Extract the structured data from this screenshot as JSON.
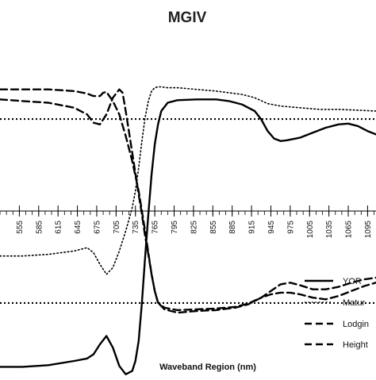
{
  "chart_data": {
    "type": "line",
    "title": "MGIV",
    "xlabel": "Waveband Region (nm)",
    "ylabel": "",
    "xlim": [
      525,
      1108
    ],
    "ylim": [
      -1,
      1
    ],
    "x_ticks": [
      555,
      585,
      615,
      645,
      675,
      705,
      735,
      765,
      795,
      825,
      855,
      885,
      915,
      945,
      975,
      1005,
      1035,
      1065,
      1095
    ],
    "x_tick_labels": [
      "555",
      "585",
      "615",
      "645",
      "675",
      "705",
      "735",
      "765",
      "795",
      "825",
      "855",
      "885",
      "915",
      "945",
      "975",
      "1005",
      "1035",
      "1065",
      "1095"
    ],
    "reference_lines": [
      0.552,
      -0.552
    ],
    "grid": false,
    "legend_position": "bottom-right",
    "series": [
      {
        "name": "YOR",
        "style": "solid",
        "color": "#000000",
        "x": [
          525,
          560,
          600,
          640,
          660,
          670,
          680,
          690,
          700,
          710,
          720,
          730,
          735,
          740,
          745,
          750,
          755,
          760,
          765,
          770,
          775,
          785,
          800,
          830,
          860,
          880,
          900,
          920,
          930,
          940,
          950,
          960,
          970,
          990,
          1010,
          1030,
          1050,
          1065,
          1080,
          1095,
          1108
        ],
        "y": [
          -0.935,
          -0.935,
          -0.925,
          -0.9,
          -0.885,
          -0.86,
          -0.8,
          -0.75,
          -0.82,
          -0.93,
          -0.98,
          -0.96,
          -0.9,
          -0.78,
          -0.55,
          -0.28,
          -0.02,
          0.22,
          0.4,
          0.52,
          0.6,
          0.65,
          0.665,
          0.67,
          0.67,
          0.66,
          0.64,
          0.6,
          0.55,
          0.48,
          0.435,
          0.42,
          0.425,
          0.44,
          0.47,
          0.5,
          0.52,
          0.525,
          0.51,
          0.48,
          0.46
        ]
      },
      {
        "name": "Maturity",
        "style": "dotted",
        "color": "#000000",
        "x": [
          525,
          560,
          600,
          640,
          660,
          670,
          680,
          690,
          700,
          710,
          720,
          730,
          735,
          740,
          745,
          750,
          755,
          760,
          765,
          770,
          775,
          785,
          800,
          830,
          860,
          880,
          900,
          920,
          940,
          960,
          990,
          1020,
          1050,
          1080,
          1108
        ],
        "y": [
          -0.27,
          -0.27,
          -0.26,
          -0.24,
          -0.22,
          -0.25,
          -0.32,
          -0.38,
          -0.34,
          -0.24,
          -0.12,
          0.02,
          0.12,
          0.26,
          0.42,
          0.56,
          0.66,
          0.72,
          0.74,
          0.745,
          0.745,
          0.74,
          0.74,
          0.73,
          0.72,
          0.71,
          0.7,
          0.68,
          0.645,
          0.63,
          0.62,
          0.61,
          0.61,
          0.605,
          0.6
        ]
      },
      {
        "name": "Lodging",
        "style": "dashed",
        "color": "#000000",
        "x": [
          525,
          560,
          600,
          640,
          660,
          670,
          680,
          685,
          690,
          700,
          710,
          720,
          730,
          740,
          745,
          750,
          755,
          760,
          765,
          770,
          780,
          800,
          830,
          860,
          890,
          910,
          930,
          945,
          960,
          975,
          990,
          1010,
          1030,
          1050,
          1070,
          1090,
          1108
        ],
        "y": [
          0.73,
          0.73,
          0.73,
          0.72,
          0.705,
          0.69,
          0.69,
          0.71,
          0.715,
          0.66,
          0.58,
          0.45,
          0.3,
          0.12,
          0.0,
          -0.12,
          -0.25,
          -0.38,
          -0.48,
          -0.55,
          -0.58,
          -0.595,
          -0.59,
          -0.585,
          -0.575,
          -0.555,
          -0.52,
          -0.48,
          -0.44,
          -0.43,
          -0.445,
          -0.47,
          -0.47,
          -0.455,
          -0.43,
          -0.41,
          -0.4
        ]
      },
      {
        "name": "Height",
        "style": "dashed",
        "color": "#000000",
        "x": [
          525,
          560,
          600,
          640,
          660,
          670,
          680,
          690,
          700,
          710,
          715,
          720,
          730,
          740,
          745,
          750,
          755,
          760,
          765,
          770,
          780,
          800,
          830,
          860,
          890,
          910,
          930,
          945,
          960,
          975,
          990,
          1010,
          1030,
          1050,
          1070,
          1090,
          1108
        ],
        "y": [
          0.67,
          0.66,
          0.65,
          0.62,
          0.58,
          0.53,
          0.52,
          0.58,
          0.68,
          0.73,
          0.71,
          0.6,
          0.35,
          0.1,
          -0.02,
          -0.15,
          -0.26,
          -0.38,
          -0.48,
          -0.55,
          -0.59,
          -0.61,
          -0.6,
          -0.595,
          -0.58,
          -0.56,
          -0.52,
          -0.5,
          -0.49,
          -0.49,
          -0.5,
          -0.52,
          -0.53,
          -0.51,
          -0.48,
          -0.45,
          -0.43
        ]
      }
    ],
    "legend_labels": [
      "YOR",
      "Matur",
      "Lodgin",
      "Height"
    ]
  }
}
